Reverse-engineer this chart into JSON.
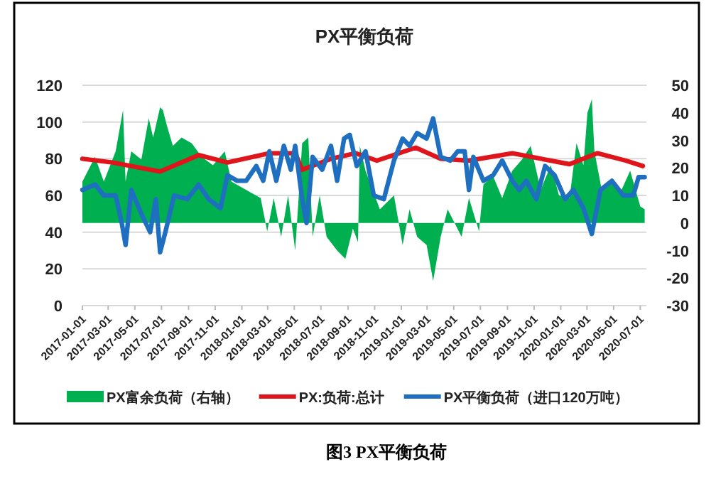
{
  "chart_data": {
    "type": "line",
    "title": "PX平衡负荷",
    "annotations": [
      "图3 PX平衡负荷"
    ],
    "xlim": [
      "2017-01-01",
      "2020-07-15"
    ],
    "xticks": [
      "2017-01-01",
      "2017-03-01",
      "2017-05-01",
      "2017-07-01",
      "2017-09-01",
      "2017-11-01",
      "2018-01-01",
      "2018-03-01",
      "2018-05-01",
      "2018-07-01",
      "2018-09-01",
      "2018-11-01",
      "2019-01-01",
      "2019-03-01",
      "2019-05-01",
      "2019-07-01",
      "2019-09-01",
      "2019-11-01",
      "2020-01-01",
      "2020-03-01",
      "2020-05-01",
      "2020-07-01"
    ],
    "ylim": [
      0,
      120
    ],
    "yticks": [
      0,
      20,
      40,
      60,
      80,
      100,
      120
    ],
    "y2lim": [
      -30,
      50
    ],
    "y2ticks": [
      -30,
      -20,
      -10,
      0,
      10,
      20,
      30,
      40,
      50
    ],
    "grid": "y",
    "legend": "bottom",
    "series": [
      {
        "name": "PX富余负荷（右轴）",
        "type": "area",
        "axis": "y2",
        "color": "#00b050",
        "x": [
          "2017-01-01",
          "2017-01-30",
          "2017-02-19",
          "2017-03-18",
          "2017-04-04",
          "2017-04-10",
          "2017-04-23",
          "2017-05-16",
          "2017-06-02",
          "2017-06-12",
          "2017-06-28",
          "2017-07-04",
          "2017-07-14",
          "2017-07-27",
          "2017-08-16",
          "2017-09-08",
          "2017-10-01",
          "2017-10-27",
          "2017-11-23",
          "2017-12-08",
          "2018-01-11",
          "2018-02-13",
          "2018-02-28",
          "2018-03-15",
          "2018-04-01",
          "2018-04-17",
          "2018-05-03",
          "2018-05-19",
          "2018-06-02",
          "2018-06-12",
          "2018-06-28",
          "2018-07-14",
          "2018-08-07",
          "2018-08-26",
          "2018-09-12",
          "2018-09-24",
          "2018-09-28",
          "2018-10-11",
          "2018-11-13",
          "2018-12-15",
          "2019-01-04",
          "2019-01-20",
          "2019-02-06",
          "2019-02-28",
          "2019-03-15",
          "2019-04-01",
          "2019-04-17",
          "2019-05-03",
          "2019-05-19",
          "2019-06-05",
          "2019-06-28",
          "2019-07-08",
          "2019-07-30",
          "2019-08-20",
          "2019-09-12",
          "2019-10-04",
          "2019-10-24",
          "2019-11-16",
          "2019-12-09",
          "2019-12-28",
          "2020-01-21",
          "2020-02-06",
          "2020-02-22",
          "2020-03-02",
          "2020-03-12",
          "2020-03-18",
          "2020-04-04",
          "2020-04-27",
          "2020-05-19",
          "2020-06-08",
          "2020-07-01",
          "2020-07-11"
        ],
        "values": [
          15,
          24,
          15,
          26,
          41,
          15,
          26,
          23,
          38,
          31,
          42,
          41,
          35,
          28,
          31,
          29,
          24,
          21,
          26,
          15,
          12,
          9,
          -3,
          9,
          -5,
          10,
          -10,
          29,
          31,
          -5,
          10,
          -5,
          -10,
          -13,
          -2,
          -7,
          28,
          19,
          5,
          10,
          -8,
          5,
          -5,
          -8,
          -21,
          -5,
          5,
          0,
          -5,
          9,
          -3,
          14,
          17,
          9,
          19,
          23,
          28,
          12,
          21,
          10,
          9,
          29,
          21,
          40,
          45,
          26,
          12,
          15,
          12,
          19,
          6,
          5
        ]
      },
      {
        "name": "PX:负荷:总计",
        "type": "line",
        "color": "#e0151b",
        "x": [
          "2017-01-01",
          "2017-03-11",
          "2017-06-28",
          "2017-09-24",
          "2017-11-29",
          "2018-03-05",
          "2018-05-03",
          "2018-05-19",
          "2018-07-24",
          "2018-09-18",
          "2018-11-06",
          "2019-02-03",
          "2019-04-01",
          "2019-06-05",
          "2019-09-12",
          "2020-01-21",
          "2020-03-25",
          "2020-05-29",
          "2020-07-07"
        ],
        "values": [
          80,
          78,
          73,
          82,
          78,
          83,
          83,
          74,
          80,
          83,
          79,
          86,
          80,
          79,
          83,
          77,
          83,
          79,
          76
        ]
      },
      {
        "name": "PX平衡负荷（进口120万吨）",
        "type": "line",
        "color": "#1f6fc0",
        "x": [
          "2017-01-01",
          "2017-01-30",
          "2017-02-19",
          "2017-03-18",
          "2017-04-01",
          "2017-04-10",
          "2017-04-23",
          "2017-05-16",
          "2017-06-05",
          "2017-06-18",
          "2017-06-28",
          "2017-07-10",
          "2017-07-30",
          "2017-08-29",
          "2017-09-24",
          "2017-10-17",
          "2017-11-13",
          "2017-11-29",
          "2017-12-21",
          "2018-01-11",
          "2018-02-03",
          "2018-02-19",
          "2018-03-05",
          "2018-03-21",
          "2018-04-07",
          "2018-04-23",
          "2018-05-03",
          "2018-05-19",
          "2018-05-29",
          "2018-06-12",
          "2018-07-04",
          "2018-07-24",
          "2018-08-07",
          "2018-08-23",
          "2018-09-05",
          "2018-09-21",
          "2018-10-11",
          "2018-10-30",
          "2018-11-22",
          "2018-12-15",
          "2019-01-04",
          "2019-01-20",
          "2019-02-06",
          "2019-02-28",
          "2019-03-15",
          "2019-04-01",
          "2019-04-23",
          "2019-05-10",
          "2019-05-26",
          "2019-06-05",
          "2019-06-15",
          "2019-07-08",
          "2019-07-30",
          "2019-08-20",
          "2019-09-12",
          "2019-09-28",
          "2019-10-14",
          "2019-11-06",
          "2019-11-26",
          "2019-12-18",
          "2020-01-11",
          "2020-01-30",
          "2020-02-22",
          "2020-03-12",
          "2020-04-01",
          "2020-04-27",
          "2020-05-23",
          "2020-06-15",
          "2020-06-27",
          "2020-07-11"
        ],
        "values": [
          63,
          66,
          60,
          60,
          45,
          33,
          63,
          50,
          40,
          58,
          29,
          40,
          60,
          58,
          66,
          58,
          53,
          71,
          68,
          68,
          76,
          68,
          84,
          68,
          87,
          74,
          87,
          58,
          45,
          81,
          74,
          87,
          68,
          91,
          93,
          76,
          84,
          60,
          58,
          79,
          91,
          87,
          94,
          91,
          102,
          81,
          79,
          84,
          84,
          63,
          81,
          68,
          71,
          79,
          68,
          63,
          68,
          58,
          76,
          71,
          58,
          63,
          53,
          39,
          63,
          68,
          60,
          60,
          70,
          70
        ]
      }
    ]
  }
}
